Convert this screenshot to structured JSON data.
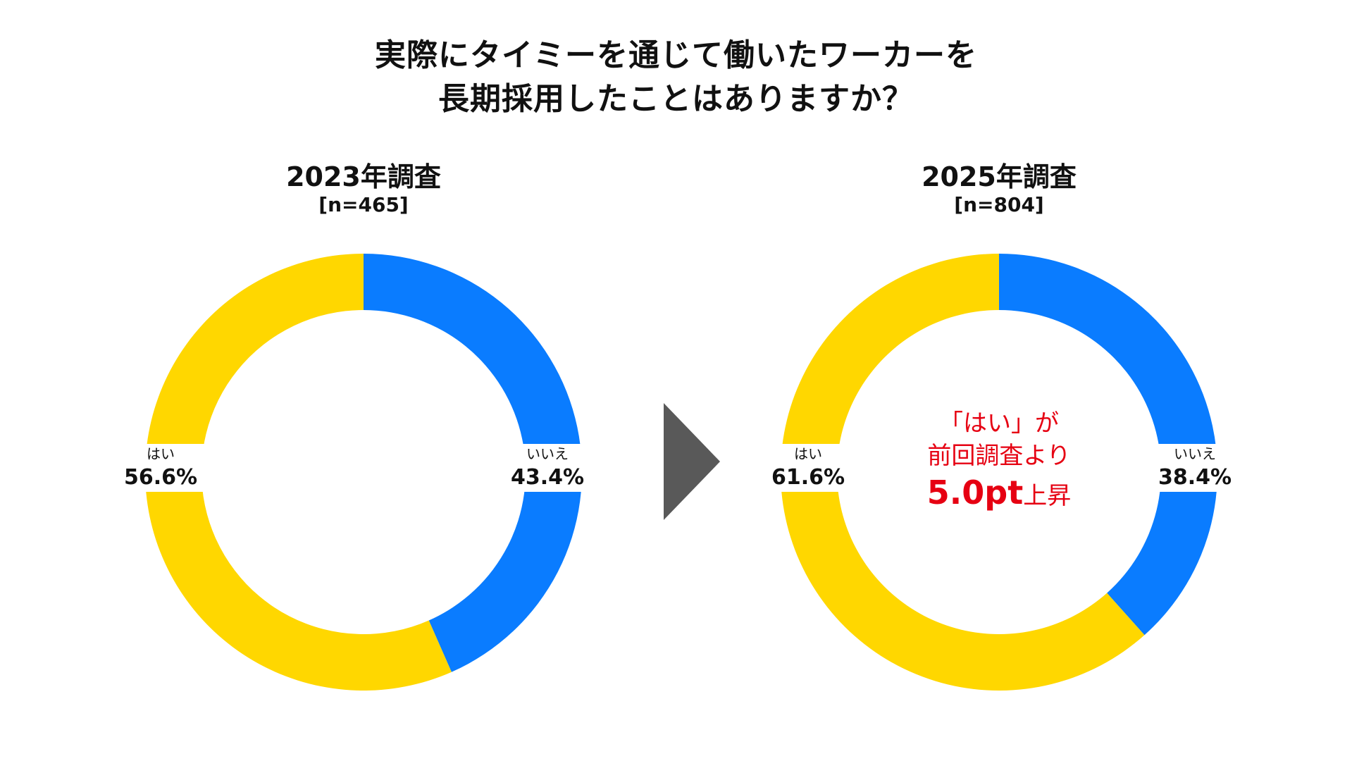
{
  "title": {
    "line1": "実際にタイミーを通じて働いたワーカーを",
    "line2": "長期採用したことはありますか？"
  },
  "colors": {
    "yes": "#FFD700",
    "no": "#0A7CFF",
    "arrow": "#595959",
    "callout": "#E60012"
  },
  "chart_data": [
    {
      "type": "pie",
      "variant": "donut",
      "title": "2023年調査",
      "subtitle": "[n=465]",
      "categories": [
        "いいえ",
        "はい"
      ],
      "values": [
        43.4,
        56.6
      ],
      "value_labels": [
        "43.4%",
        "56.6%"
      ],
      "colors": [
        "#0A7CFF",
        "#FFD700"
      ],
      "start_angle": "12 o'clock, clockwise"
    },
    {
      "type": "pie",
      "variant": "donut",
      "title": "2025年調査",
      "subtitle": "[n=804]",
      "categories": [
        "いいえ",
        "はい"
      ],
      "values": [
        38.4,
        61.6
      ],
      "value_labels": [
        "38.4%",
        "61.6%"
      ],
      "colors": [
        "#0A7CFF",
        "#FFD700"
      ],
      "start_angle": "12 o'clock, clockwise",
      "annotation": {
        "line1": "「はい」が",
        "line2": "前回調査より",
        "value": "5.0pt",
        "suffix": "上昇"
      }
    }
  ],
  "arrow_icon": "triangle-right-icon"
}
